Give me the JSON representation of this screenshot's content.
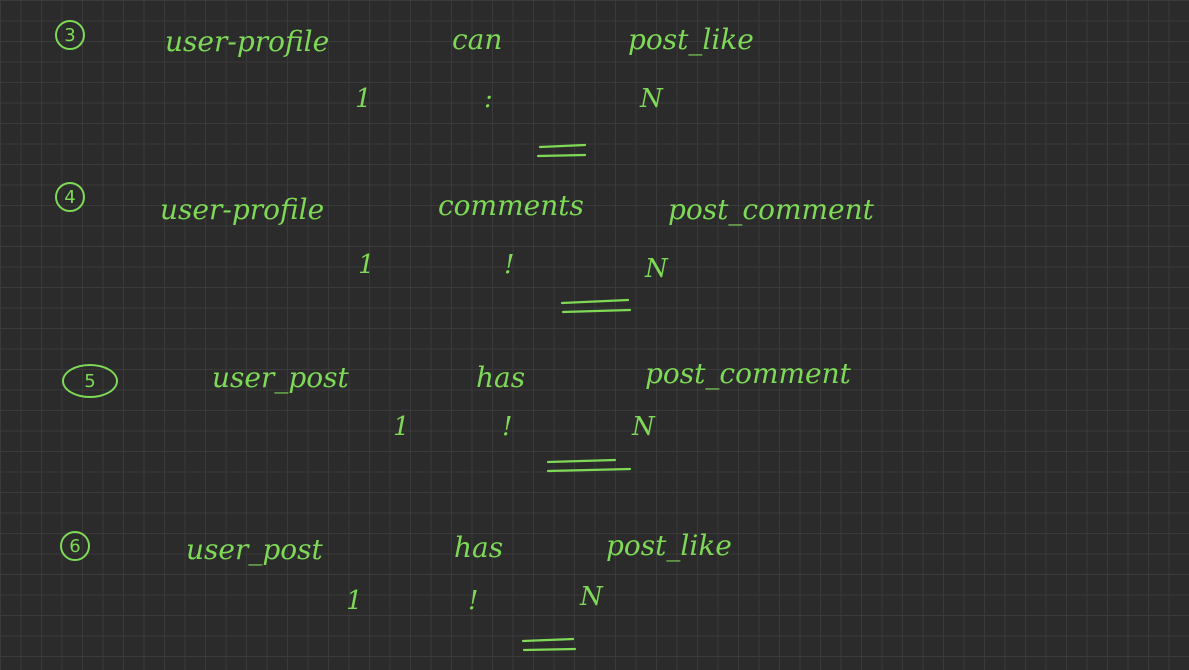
{
  "relations": [
    {
      "number": "3",
      "entity_a": "user-profile",
      "verb": "can",
      "entity_b": "post_like",
      "card_a": "1",
      "sep": ":",
      "card_b": "N",
      "underline": "="
    },
    {
      "number": "4",
      "entity_a": "user-profile",
      "verb": "comments",
      "entity_b": "post_comment",
      "card_a": "1",
      "sep": "!",
      "card_b": "N",
      "underline": "="
    },
    {
      "number": "5",
      "entity_a": "user_post",
      "verb": "has",
      "entity_b": "post_comment",
      "card_a": "1",
      "sep": "!",
      "card_b": "N",
      "underline": "="
    },
    {
      "number": "6",
      "entity_a": "user_post",
      "verb": "has",
      "entity_b": "post_like",
      "card_a": "1",
      "sep": "!",
      "card_b": "N",
      "underline": "="
    }
  ],
  "colors": {
    "ink": "#7ed957",
    "background": "#2b2b2b",
    "grid": "#3a3a3a"
  }
}
